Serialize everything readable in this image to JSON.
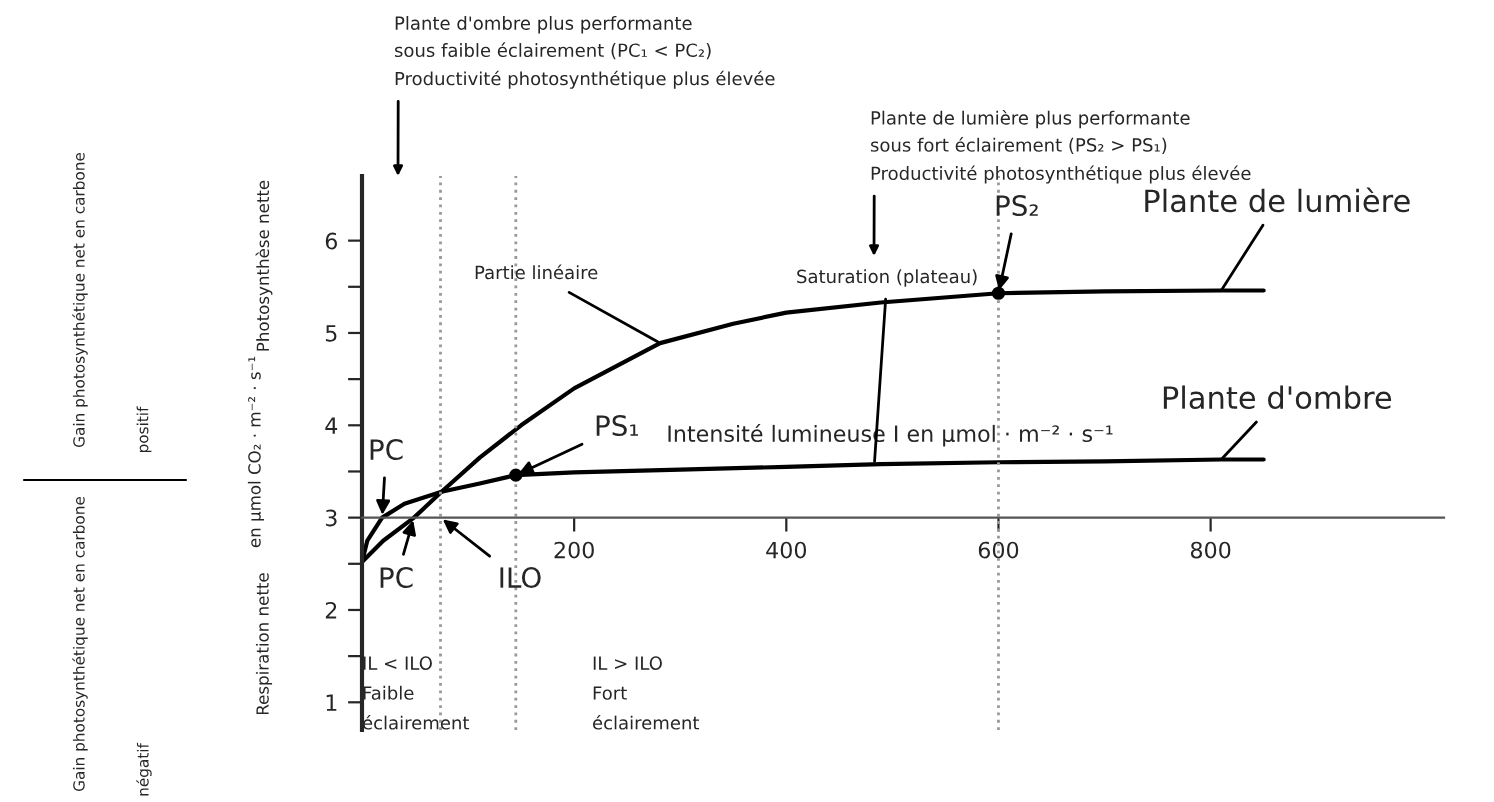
{
  "chart_data": {
    "type": "line",
    "xlabel": "Intensité lumineuse I en µmol · m⁻² · s⁻¹",
    "ylabel": "en µmol CO₂ · m⁻² · s⁻¹",
    "xlim": [
      0,
      1020
    ],
    "ylim": [
      0.7,
      6.7
    ],
    "xticks": [
      200,
      400,
      600,
      800
    ],
    "yticks": [
      1,
      {
        "value": 1.5,
        "label": null
      },
      2,
      {
        "value": 2.5,
        "label": null
      },
      3,
      {
        "value": 3.5,
        "label": null
      },
      4,
      {
        "value": 4.5,
        "label": null
      },
      5,
      {
        "value": 5.5,
        "label": null
      },
      6
    ],
    "grid": false,
    "legend": false,
    "series": [
      {
        "name": "Plante de lumière",
        "color": "#000000",
        "x": [
          0,
          20,
          49,
          75,
          111,
          150,
          200,
          281,
          350,
          400,
          489,
          600,
          700,
          810,
          850
        ],
        "values": [
          2.52,
          2.75,
          3.0,
          3.28,
          3.65,
          4.0,
          4.4,
          4.89,
          5.1,
          5.22,
          5.33,
          5.43,
          5.45,
          5.46,
          5.46
        ]
      },
      {
        "name": "Plante d'ombre",
        "color": "#000000",
        "x": [
          0,
          5,
          19,
          40,
          75,
          111,
          145,
          200,
          300,
          400,
          489,
          600,
          700,
          810,
          850
        ],
        "values": [
          2.52,
          2.75,
          3.0,
          3.15,
          3.28,
          3.37,
          3.46,
          3.49,
          3.52,
          3.55,
          3.58,
          3.6,
          3.61,
          3.63,
          3.63
        ]
      },
      {
        "type": "scatter",
        "color": "#000000",
        "x": [
          145,
          600
        ],
        "values": [
          3.46,
          5.43
        ]
      }
    ],
    "ref_lines": [
      {
        "axis": "x",
        "value": 74,
        "color": "#999999",
        "line_style": "dotted"
      },
      {
        "axis": "x",
        "value": 145,
        "color": "#999999",
        "line_style": "dotted"
      },
      {
        "axis": "x",
        "value": 600,
        "color": "#999999",
        "line_style": "dotted"
      }
    ],
    "annotations": [
      "Plante d'ombre plus performante\nsous faible éclairement (PC₁ < PC₂)\nProductivité photosynthétique plus élevée",
      "Plante de lumière plus performante\nsous fort éclairement (PS₂ > PS₁)\nProductivité photosynthétique plus élevée",
      {
        "text": "Partie linéaire",
        "x": 281,
        "y": 4.89
      },
      {
        "text": "Saturation (plateau)",
        "x": 483,
        "y": 3.58
      },
      {
        "text": "PS₂",
        "x": 600,
        "y": 5.43
      },
      {
        "text": "PS₁",
        "x": 145,
        "y": 3.46
      },
      {
        "text": "PC",
        "x": 19,
        "y": 3
      },
      {
        "text": "PC",
        "x": 49,
        "y": 3
      },
      {
        "text": "ILO",
        "x": 74,
        "y": 3
      },
      "IL < ILO\nFaible\néclairement",
      "IL > ILO\nFort\néclairement",
      "Photosynthèse nette",
      "Respiration nette",
      "Gain photosynthétique net en carbone",
      "positif",
      "Gain photosynthétique net en carbone",
      "négatif"
    ]
  }
}
